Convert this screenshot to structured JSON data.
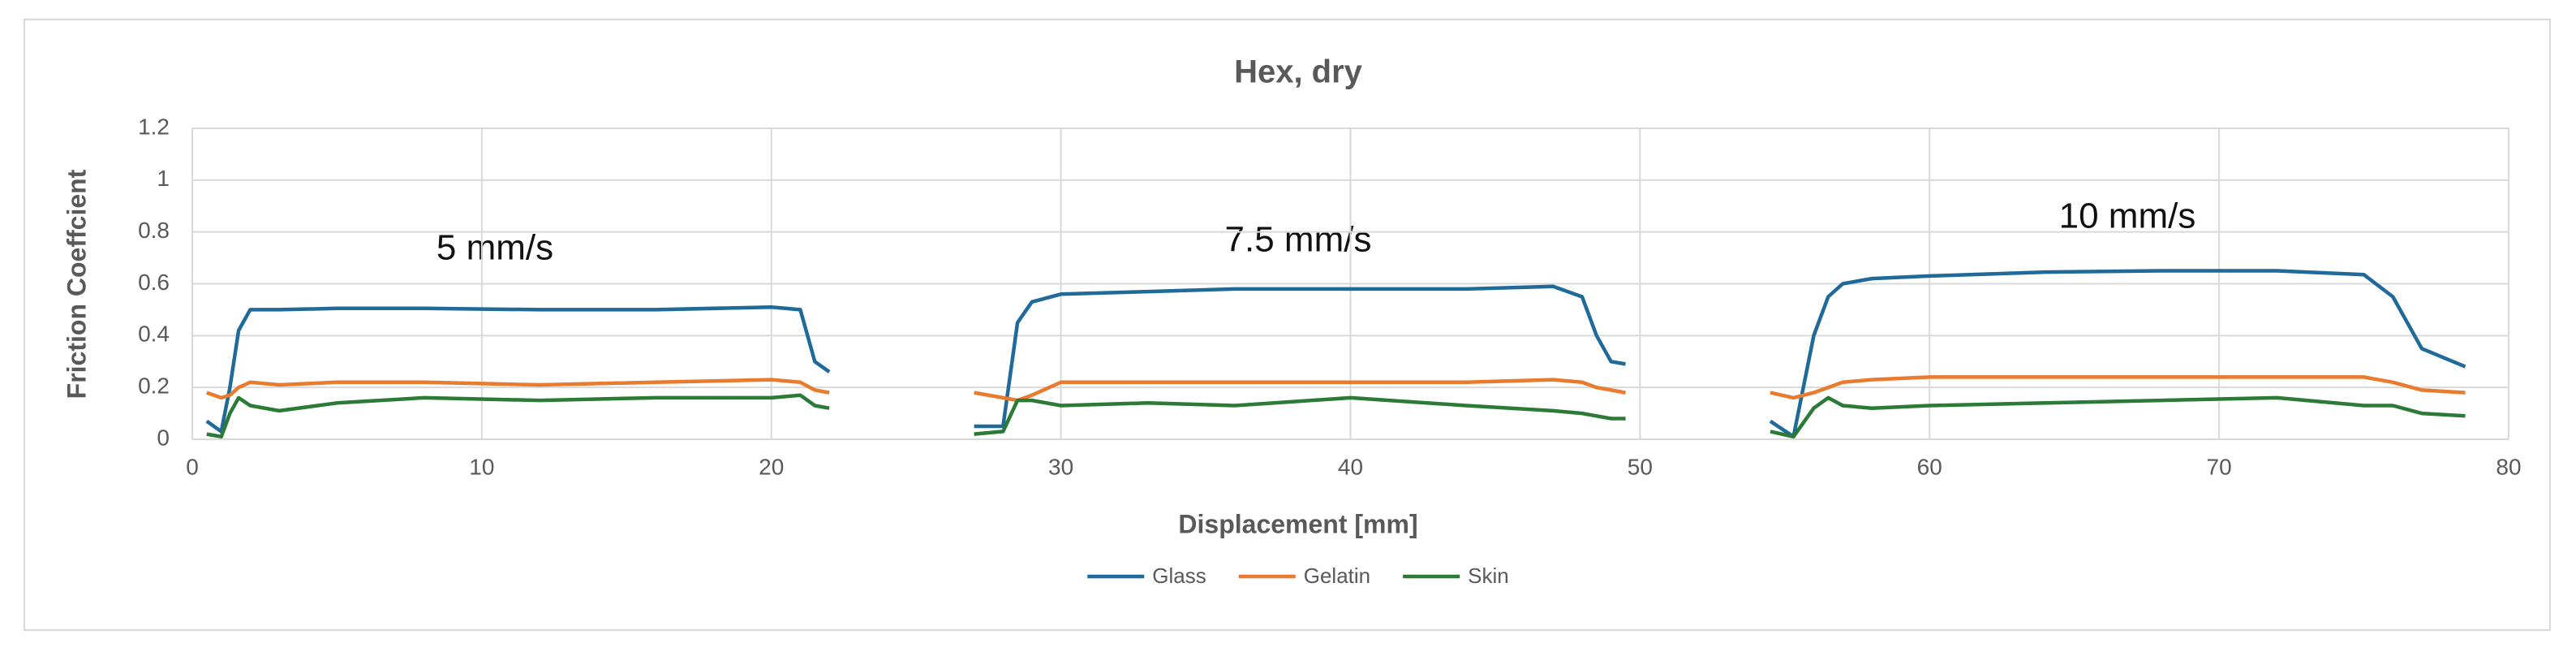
{
  "chart_data": {
    "type": "line",
    "title": "Hex, dry",
    "x_label": "Displacement [mm]",
    "y_label": "Friction Coeffcient",
    "annotations": [
      "5 mm/s",
      "7.5 mm/s",
      "10 mm/s"
    ],
    "x": [
      0.5,
      1,
      1.3,
      1.6,
      2,
      3,
      5,
      8,
      12,
      16,
      20,
      21,
      21.5,
      22,
      null,
      27,
      28,
      28.5,
      29,
      30,
      33,
      36,
      40,
      44,
      47,
      48,
      48.5,
      49,
      49.5,
      null,
      54.5,
      55.3,
      56,
      56.5,
      57,
      58,
      60,
      64,
      68,
      72,
      75,
      76,
      77,
      78.5
    ],
    "series": [
      {
        "name": "Glass",
        "color": "#1f6a99",
        "values": [
          0.07,
          0.03,
          0.2,
          0.42,
          0.5,
          0.5,
          0.505,
          0.505,
          0.5,
          0.5,
          0.51,
          0.5,
          0.3,
          0.26,
          null,
          0.05,
          0.05,
          0.45,
          0.53,
          0.56,
          0.57,
          0.58,
          0.58,
          0.58,
          0.59,
          0.55,
          0.4,
          0.3,
          0.29,
          null,
          0.07,
          0.01,
          0.4,
          0.55,
          0.6,
          0.62,
          0.63,
          0.645,
          0.65,
          0.65,
          0.635,
          0.55,
          0.35,
          0.28
        ]
      },
      {
        "name": "Gelatin",
        "color": "#e97b2f",
        "values": [
          0.18,
          0.16,
          0.17,
          0.2,
          0.22,
          0.21,
          0.22,
          0.22,
          0.21,
          0.22,
          0.23,
          0.22,
          0.19,
          0.18,
          null,
          0.18,
          0.16,
          0.15,
          0.17,
          0.22,
          0.22,
          0.22,
          0.22,
          0.22,
          0.23,
          0.22,
          0.2,
          0.19,
          0.18,
          null,
          0.18,
          0.16,
          0.18,
          0.2,
          0.22,
          0.23,
          0.24,
          0.24,
          0.24,
          0.24,
          0.24,
          0.22,
          0.19,
          0.18
        ]
      },
      {
        "name": "Skin",
        "color": "#2b7a35",
        "values": [
          0.02,
          0.01,
          0.1,
          0.16,
          0.13,
          0.11,
          0.14,
          0.16,
          0.15,
          0.16,
          0.16,
          0.17,
          0.13,
          0.12,
          null,
          0.02,
          0.03,
          0.15,
          0.15,
          0.13,
          0.14,
          0.13,
          0.16,
          0.13,
          0.11,
          0.1,
          0.09,
          0.08,
          0.08,
          null,
          0.03,
          0.01,
          0.12,
          0.16,
          0.13,
          0.12,
          0.13,
          0.14,
          0.15,
          0.16,
          0.13,
          0.13,
          0.1,
          0.09
        ]
      }
    ],
    "xlim": [
      0,
      80
    ],
    "xticks": [
      0,
      10,
      20,
      30,
      40,
      50,
      60,
      70,
      80
    ],
    "ylim": [
      0,
      1.2
    ],
    "yticks": [
      0,
      0.2,
      0.4,
      0.6,
      0.8,
      1,
      1.2
    ],
    "grid": true,
    "legend": "bottom"
  }
}
